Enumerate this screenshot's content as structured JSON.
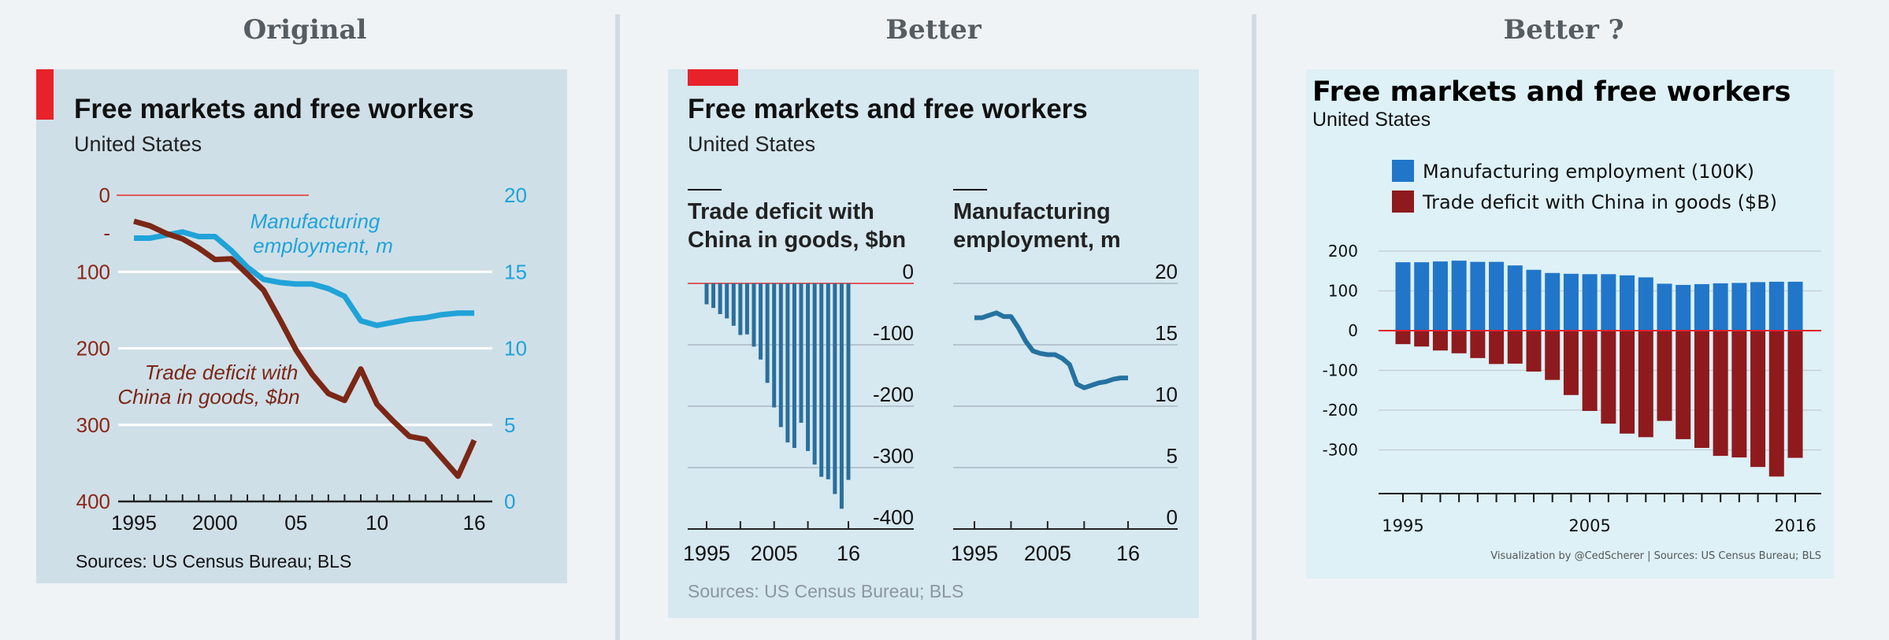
{
  "headings": {
    "original": "Original",
    "better": "Better",
    "better_q": "Better ?"
  },
  "colors": {
    "red": "#e8222a",
    "cyan": "#20a3d8",
    "brown": "#7b2716",
    "blue_bar": "#2a6f9e",
    "blue_line": "#2472a1",
    "p3_blue": "#2176c9",
    "p3_red": "#8e1a1d",
    "bg1": "#cfdfe8",
    "bg2": "#d6e8f0",
    "bg3": "#ddf1f7"
  },
  "panel1": {
    "title": "Free markets and free workers",
    "subtitle": "United States",
    "label_mfg_line1": "Manufacturing",
    "label_mfg_line2": "employment, m",
    "label_trade_line1": "Trade deficit with",
    "label_trade_line2": "China in goods, $bn",
    "left_ticks": [
      "0",
      "-",
      "100",
      "200",
      "300",
      "400"
    ],
    "right_ticks": [
      "20",
      "15",
      "10",
      "5",
      "0"
    ],
    "x_ticks": [
      "1995",
      "2000",
      "05",
      "10",
      "16"
    ],
    "source": "Sources: US Census Bureau; BLS"
  },
  "panel2": {
    "title": "Free markets and free workers",
    "subtitle": "United States",
    "left_title_line1": "Trade deficit with",
    "left_title_line2": "China in goods, $bn",
    "right_title_line1": "Manufacturing",
    "right_title_line2": "employment, m",
    "left_y_ticks": [
      "0",
      "-100",
      "-200",
      "-300",
      "-400"
    ],
    "right_y_ticks": [
      "20",
      "15",
      "10",
      "5",
      "0"
    ],
    "x_ticks": [
      "1995",
      "2005",
      "16"
    ],
    "source": "Sources: US Census Bureau; BLS"
  },
  "panel3": {
    "title": "Free markets and free workers",
    "subtitle": "United States",
    "legend_mfg": "Manufacturing employment (100K)",
    "legend_trade": "Trade deficit with China in goods ($B)",
    "y_ticks": [
      "200",
      "100",
      "0",
      "-100",
      "-200",
      "-300"
    ],
    "x_ticks": [
      "1995",
      "2005",
      "2016"
    ],
    "caption": "Visualization by @CedScherer  |  Sources: US Census Bureau; BLS"
  },
  "chart_data": [
    {
      "type": "line",
      "title": "Free markets and free workers",
      "subtitle": "United States",
      "x": [
        1995,
        1996,
        1997,
        1998,
        1999,
        2000,
        2001,
        2002,
        2003,
        2004,
        2005,
        2006,
        2007,
        2008,
        2009,
        2010,
        2011,
        2012,
        2013,
        2014,
        2015,
        2016
      ],
      "series": [
        {
          "name": "Trade deficit with China in goods, $bn",
          "axis": "left (inverted)",
          "values": [
            34,
            40,
            50,
            57,
            69,
            84,
            83,
            103,
            124,
            162,
            202,
            234,
            259,
            268,
            227,
            273,
            295,
            315,
            319,
            343,
            367,
            320
          ]
        },
        {
          "name": "Manufacturing employment, m",
          "axis": "right",
          "values": [
            17.2,
            17.2,
            17.4,
            17.6,
            17.3,
            17.3,
            16.4,
            15.3,
            14.5,
            14.3,
            14.2,
            14.2,
            13.9,
            13.4,
            11.8,
            11.5,
            11.7,
            11.9,
            12.0,
            12.2,
            12.3,
            12.3
          ]
        }
      ],
      "ylim_left": [
        400,
        0
      ],
      "ylim_right": [
        0,
        20
      ],
      "xticks": [
        "1995",
        "2000",
        "05",
        "10",
        "16"
      ]
    },
    {
      "type": "bar",
      "title": "Trade deficit with China in goods, $bn",
      "categories": [
        1995,
        1996,
        1997,
        1998,
        1999,
        2000,
        2001,
        2002,
        2003,
        2004,
        2005,
        2006,
        2007,
        2008,
        2009,
        2010,
        2011,
        2012,
        2013,
        2014,
        2015,
        2016
      ],
      "values": [
        -34,
        -40,
        -50,
        -57,
        -69,
        -84,
        -83,
        -103,
        -124,
        -162,
        -202,
        -234,
        -259,
        -268,
        -227,
        -273,
        -295,
        -315,
        -319,
        -343,
        -367,
        -320
      ],
      "ylim": [
        -400,
        0
      ]
    },
    {
      "type": "line",
      "title": "Manufacturing employment, m",
      "x": [
        1995,
        1996,
        1997,
        1998,
        1999,
        2000,
        2001,
        2002,
        2003,
        2004,
        2005,
        2006,
        2007,
        2008,
        2009,
        2010,
        2011,
        2012,
        2013,
        2014,
        2015,
        2016
      ],
      "values": [
        17.2,
        17.2,
        17.4,
        17.6,
        17.3,
        17.3,
        16.4,
        15.3,
        14.5,
        14.3,
        14.2,
        14.2,
        13.9,
        13.4,
        11.8,
        11.5,
        11.7,
        11.9,
        12.0,
        12.2,
        12.3,
        12.3
      ],
      "ylim": [
        0,
        20
      ]
    },
    {
      "type": "bar",
      "title": "Free markets and free workers",
      "categories": [
        1995,
        1996,
        1997,
        1998,
        1999,
        2000,
        2001,
        2002,
        2003,
        2004,
        2005,
        2006,
        2007,
        2008,
        2009,
        2010,
        2011,
        2012,
        2013,
        2014,
        2015,
        2016
      ],
      "series": [
        {
          "name": "Manufacturing employment (100K)",
          "values": [
            172,
            172,
            174,
            176,
            173,
            173,
            164,
            153,
            145,
            143,
            142,
            142,
            139,
            134,
            118,
            115,
            117,
            119,
            120,
            122,
            123,
            123
          ]
        },
        {
          "name": "Trade deficit with China in goods ($B)",
          "values": [
            -34,
            -40,
            -50,
            -57,
            -69,
            -84,
            -83,
            -103,
            -124,
            -162,
            -202,
            -234,
            -259,
            -268,
            -227,
            -273,
            -295,
            -315,
            -319,
            -343,
            -367,
            -320
          ]
        }
      ],
      "ylim": [
        -400,
        200
      ]
    }
  ]
}
